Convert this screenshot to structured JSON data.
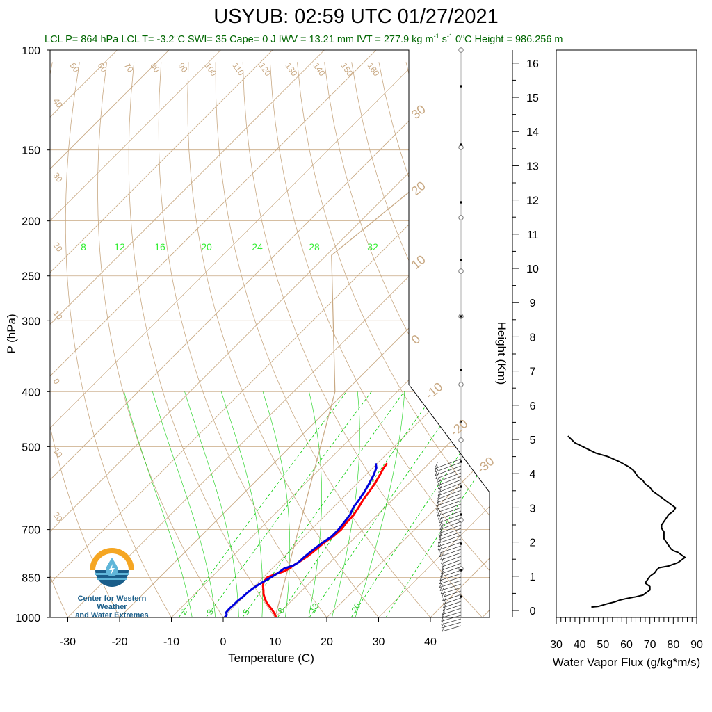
{
  "title": "USYUB: 02:59 UTC 01/27/2021",
  "stats": {
    "lcl_p": "LCL P= 864 hPa",
    "lcl_t_pre": "LCL T= -3.2",
    "deg": "o",
    "lcl_t_unit": "C",
    "swi": "SWI= 35",
    "cape": "Cape= 0 J",
    "iwv": "IWV = 13.21 mm",
    "ivt_pre": "IVT = 277.9 kg m",
    "exp1": "-1",
    "s_unit": " s",
    "exp2": "-1",
    "zero_pre": "0",
    "zero_post": "C Height = 986.256 m"
  },
  "logo": {
    "text_line1": "Center for Western Weather",
    "text_line2": "and Water Extremes"
  },
  "colors": {
    "temperature": "#ff0000",
    "dewpoint": "#0000dd",
    "dry_adiabat": "#c8a882",
    "mixing_ratio": "#00cc00",
    "flux": "#000000"
  },
  "chart_data": [
    {
      "type": "line",
      "name": "skew-t",
      "xlabel": "Temperature (C)",
      "ylabel": "P (hPa)",
      "x_ticks": [
        "-30",
        "-20",
        "-10",
        "0",
        "10",
        "20",
        "30",
        "40"
      ],
      "y_ticks": [
        "100",
        "150",
        "200",
        "250",
        "300",
        "400",
        "500",
        "700",
        "850",
        "1000"
      ],
      "xlim": [
        -33,
        44
      ],
      "ylim": [
        1000,
        100
      ],
      "series": [
        {
          "values_p_t": [
            [
              1000,
              10.2
            ],
            [
              985,
              9.2
            ],
            [
              970,
              8.0
            ],
            [
              955,
              6.7
            ],
            [
              940,
              5.4
            ],
            [
              925,
              4.3
            ],
            [
              910,
              3.3
            ],
            [
              895,
              2.5
            ],
            [
              880,
              1.6
            ],
            [
              865,
              0.9
            ],
            [
              850,
              0.8
            ],
            [
              840,
              1.6
            ],
            [
              830,
              2.8
            ],
            [
              820,
              3.3
            ],
            [
              810,
              3.5
            ],
            [
              800,
              3.9
            ],
            [
              780,
              4.5
            ],
            [
              760,
              4.8
            ],
            [
              740,
              5.0
            ],
            [
              720,
              5.6
            ],
            [
              700,
              5.8
            ],
            [
              680,
              5.5
            ],
            [
              660,
              5.4
            ],
            [
              640,
              4.9
            ],
            [
              620,
              4.3
            ],
            [
              600,
              3.9
            ],
            [
              580,
              3.4
            ],
            [
              560,
              2.7
            ],
            [
              545,
              2.1
            ],
            [
              535,
              1.9
            ]
          ]
        },
        {
          "values_p_t": [
            [
              1000,
              0.3
            ],
            [
              990,
              0.2
            ],
            [
              980,
              -0.4
            ],
            [
              965,
              -0.5
            ],
            [
              950,
              -0.4
            ],
            [
              935,
              -0.4
            ],
            [
              920,
              -0.2
            ],
            [
              905,
              -0.1
            ],
            [
              890,
              0.1
            ],
            [
              875,
              0.5
            ],
            [
              860,
              1.1
            ],
            [
              850,
              1.5
            ],
            [
              835,
              2.0
            ],
            [
              820,
              2.3
            ],
            [
              810,
              3.5
            ],
            [
              800,
              3.9
            ],
            [
              780,
              4.0
            ],
            [
              760,
              4.3
            ],
            [
              740,
              4.7
            ],
            [
              720,
              5.3
            ],
            [
              700,
              5.3
            ],
            [
              680,
              5.0
            ],
            [
              660,
              4.7
            ],
            [
              640,
              3.9
            ],
            [
              620,
              3.5
            ],
            [
              600,
              3.0
            ],
            [
              580,
              2.3
            ],
            [
              560,
              1.5
            ],
            [
              545,
              0.7
            ],
            [
              535,
              -0.3
            ]
          ]
        }
      ],
      "isotherm_labels": [
        "-30",
        "-20",
        "-10",
        "0",
        "10",
        "20",
        "30"
      ],
      "mixing_ratio_labels": [
        "8",
        "12",
        "16",
        "20",
        "24",
        "28",
        "32"
      ],
      "mixing_ratio_low_labels": [
        "2",
        "3",
        "5",
        "8",
        "12",
        "20"
      ],
      "dry_adiabat_labels": [
        "50",
        "60",
        "70",
        "80",
        "90",
        "100",
        "110",
        "120",
        "130",
        "140",
        "150",
        "160"
      ],
      "left_labels": [
        "40",
        "30",
        "20",
        "10",
        "0",
        "10",
        "20"
      ]
    },
    {
      "type": "line",
      "name": "height-axis",
      "ylabel": "Height (Km)",
      "y_ticks": [
        "0",
        "1",
        "2",
        "3",
        "4",
        "5",
        "6",
        "7",
        "8",
        "9",
        "10",
        "11",
        "12",
        "13",
        "14",
        "15",
        "16"
      ]
    },
    {
      "type": "line",
      "name": "water-vapor-flux",
      "xlabel": "Water Vapor Flux (g/kg*m/s)",
      "x_ticks": [
        "30",
        "40",
        "50",
        "60",
        "70",
        "80",
        "90"
      ],
      "xlim": [
        30,
        90
      ],
      "ylim": [
        0,
        16.3
      ],
      "series": [
        {
          "points_flux_km": [
            [
              45,
              0.1
            ],
            [
              48,
              0.12
            ],
            [
              52,
              0.2
            ],
            [
              55,
              0.25
            ],
            [
              57,
              0.3
            ],
            [
              60,
              0.35
            ],
            [
              64,
              0.4
            ],
            [
              67,
              0.45
            ],
            [
              69,
              0.55
            ],
            [
              70,
              0.6
            ],
            [
              70,
              0.7
            ],
            [
              68,
              0.8
            ],
            [
              69,
              0.9
            ],
            [
              70,
              1.0
            ],
            [
              72,
              1.1
            ],
            [
              73,
              1.2
            ],
            [
              74,
              1.25
            ],
            [
              78,
              1.3
            ],
            [
              82,
              1.4
            ],
            [
              85,
              1.55
            ],
            [
              84,
              1.6
            ],
            [
              82,
              1.7
            ],
            [
              80,
              1.75
            ],
            [
              79,
              1.8
            ],
            [
              78,
              1.9
            ],
            [
              77,
              2.0
            ],
            [
              76,
              2.1
            ],
            [
              76,
              2.2
            ],
            [
              76,
              2.3
            ],
            [
              75,
              2.4
            ],
            [
              75,
              2.5
            ],
            [
              76,
              2.6
            ],
            [
              77,
              2.7
            ],
            [
              78,
              2.8
            ],
            [
              80,
              2.9
            ],
            [
              81,
              3.0
            ],
            [
              79,
              3.1
            ],
            [
              77,
              3.2
            ],
            [
              75,
              3.3
            ],
            [
              73,
              3.4
            ],
            [
              71,
              3.5
            ],
            [
              70,
              3.6
            ],
            [
              68,
              3.7
            ],
            [
              67,
              3.8
            ],
            [
              65,
              3.9
            ],
            [
              63,
              4.1
            ],
            [
              61,
              4.2
            ],
            [
              57,
              4.35
            ],
            [
              52,
              4.5
            ],
            [
              47,
              4.6
            ],
            [
              44,
              4.7
            ],
            [
              41,
              4.8
            ],
            [
              38,
              4.9
            ],
            [
              35,
              5.1
            ]
          ]
        }
      ]
    }
  ]
}
